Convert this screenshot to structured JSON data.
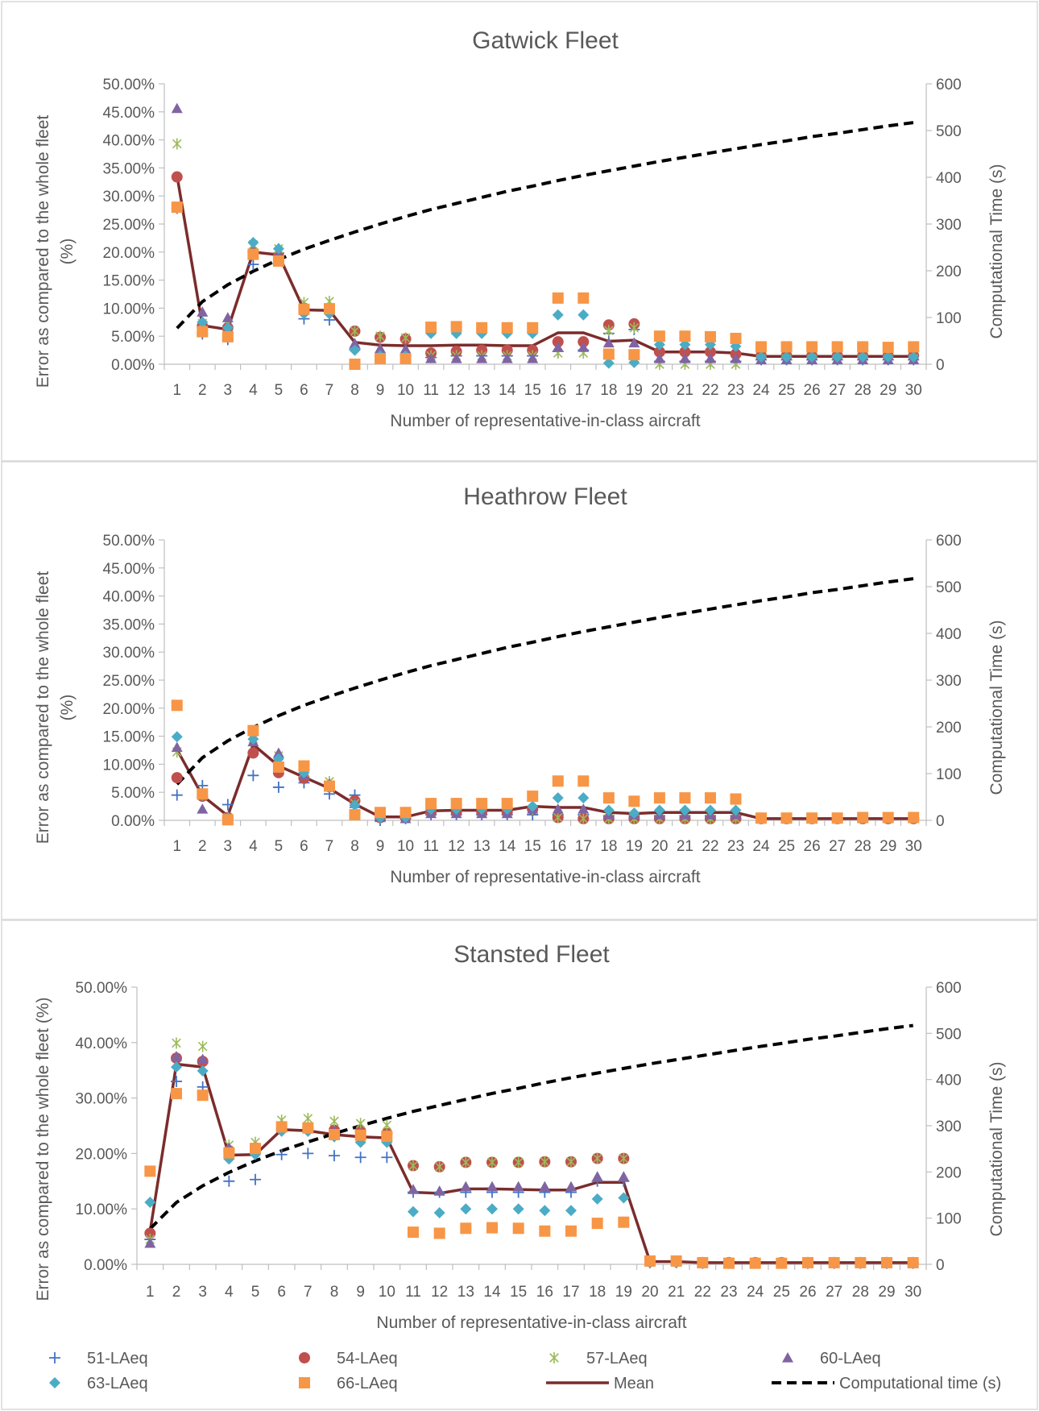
{
  "legend": {
    "items": [
      {
        "key": "s51",
        "label": "51-LAeq"
      },
      {
        "key": "s54",
        "label": "54-LAeq"
      },
      {
        "key": "s57",
        "label": "57-LAeq"
      },
      {
        "key": "s60",
        "label": "60-LAeq"
      },
      {
        "key": "s63",
        "label": "63-LAeq"
      },
      {
        "key": "s66",
        "label": "66-LAeq"
      },
      {
        "key": "mean",
        "label": "Mean"
      },
      {
        "key": "ct",
        "label": "Computational time (s)"
      }
    ]
  },
  "styles": {
    "s51": {
      "marker": "plus",
      "color": "#4472c4"
    },
    "s54": {
      "marker": "circle",
      "color": "#c0504d"
    },
    "s57": {
      "marker": "star",
      "color": "#9bbb59"
    },
    "s60": {
      "marker": "triangle",
      "color": "#8064a2"
    },
    "s63": {
      "marker": "diamond",
      "color": "#4bacc6"
    },
    "s66": {
      "marker": "square",
      "color": "#f79646"
    },
    "mean": {
      "line": "solid",
      "color": "#7b2c2c"
    },
    "ct": {
      "line": "dashed",
      "color": "#000000"
    }
  },
  "chart_data": [
    {
      "type": "scatter",
      "title": "Gatwick Fleet",
      "xlabel": "Number of representative-in-class aircraft",
      "ylabel_lines": [
        "Error as compared to the whole fleet",
        "(%)"
      ],
      "y2label": "Computational Time (s)",
      "x": [
        1,
        2,
        3,
        4,
        5,
        6,
        7,
        8,
        9,
        10,
        11,
        12,
        13,
        14,
        15,
        16,
        17,
        18,
        19,
        20,
        21,
        22,
        23,
        24,
        25,
        26,
        27,
        28,
        29,
        30
      ],
      "yticks": [
        "0.00%",
        "5.00%",
        "10.00%",
        "15.00%",
        "20.00%",
        "25.00%",
        "30.00%",
        "35.00%",
        "40.00%",
        "45.00%",
        "50.00%"
      ],
      "ylim": [
        0,
        50
      ],
      "y2ticks": [
        "0",
        "100",
        "200",
        "300",
        "400",
        "500",
        "600"
      ],
      "y2lim": [
        0,
        600
      ],
      "series": [
        {
          "key": "s51",
          "name": "51-LAeq",
          "values": [
            27.8,
            5.4,
            4.4,
            17.8,
            19.8,
            8.1,
            7.9,
            2.7,
            1.5,
            1.5,
            1.2,
            1.5,
            1.5,
            1.5,
            1.5,
            2.3,
            2.5,
            5.5,
            6.2,
            0.5,
            0.5,
            0.5,
            0.5,
            0.8,
            0.8,
            0.8,
            0.8,
            0.8,
            0.8,
            0.8
          ]
        },
        {
          "key": "s54",
          "name": "54-LAeq",
          "values": [
            33.4,
            6.8,
            6.5,
            20.0,
            19.2,
            10.0,
            9.6,
            5.9,
            4.8,
            4.5,
            2.0,
            2.3,
            2.5,
            2.5,
            2.5,
            4.0,
            4.0,
            7.0,
            7.2,
            2.2,
            2.2,
            2.2,
            1.8,
            1.5,
            1.5,
            1.5,
            1.5,
            1.5,
            1.5,
            1.5
          ]
        },
        {
          "key": "s57",
          "name": "57-LAeq",
          "values": [
            39.3,
            7.3,
            7.2,
            21.3,
            20.6,
            11.0,
            11.2,
            5.9,
            5.0,
            4.7,
            1.5,
            1.5,
            1.5,
            1.5,
            1.5,
            2.0,
            2.0,
            6.0,
            6.5,
            0.0,
            0.0,
            0.0,
            0.0,
            1.0,
            1.0,
            1.0,
            1.0,
            1.0,
            1.0,
            1.0
          ]
        },
        {
          "key": "s60",
          "name": "60-LAeq",
          "values": [
            45.6,
            9.3,
            8.3,
            20.0,
            19.3,
            10.0,
            9.8,
            3.7,
            2.8,
            2.7,
            1.0,
            1.0,
            1.0,
            1.0,
            1.0,
            3.0,
            3.0,
            3.8,
            3.8,
            1.0,
            1.0,
            1.0,
            1.0,
            0.8,
            0.8,
            0.8,
            0.8,
            0.8,
            0.8,
            0.8
          ]
        },
        {
          "key": "s63",
          "name": "63-LAeq",
          "values": [
            27.8,
            7.5,
            6.5,
            21.7,
            20.6,
            9.0,
            9.0,
            2.5,
            1.5,
            1.5,
            5.5,
            5.5,
            5.5,
            5.5,
            5.5,
            8.8,
            8.8,
            0.2,
            0.3,
            3.5,
            3.5,
            3.5,
            3.2,
            1.3,
            1.3,
            1.3,
            1.3,
            1.3,
            1.3,
            1.3
          ]
        },
        {
          "key": "s66",
          "name": "66-LAeq",
          "values": [
            28.0,
            5.8,
            4.9,
            19.6,
            18.4,
            9.8,
            9.9,
            0.0,
            1.0,
            1.0,
            6.6,
            6.7,
            6.5,
            6.5,
            6.5,
            11.8,
            11.8,
            1.8,
            1.7,
            5.0,
            5.0,
            4.9,
            4.6,
            3.1,
            3.1,
            3.1,
            3.1,
            3.1,
            3.0,
            3.1
          ]
        },
        {
          "key": "mean",
          "name": "Mean",
          "type": "line",
          "values": [
            33.6,
            6.9,
            6.2,
            20.0,
            19.5,
            9.7,
            9.6,
            3.9,
            3.4,
            3.3,
            3.3,
            3.4,
            3.4,
            3.3,
            3.3,
            5.6,
            5.6,
            4.1,
            4.3,
            2.2,
            2.2,
            2.2,
            2.0,
            1.4,
            1.4,
            1.4,
            1.4,
            1.4,
            1.4,
            1.4
          ]
        },
        {
          "key": "ct",
          "name": "Computational time (s)",
          "type": "line",
          "axis": "y2",
          "values": [
            77,
            134,
            170,
            199,
            224,
            246,
            265,
            283,
            300,
            316,
            331,
            344,
            357,
            370,
            381,
            393,
            404,
            414,
            424,
            434,
            443,
            452,
            461,
            470,
            478,
            487,
            494,
            502,
            510,
            517
          ]
        }
      ]
    },
    {
      "type": "scatter",
      "title": "Heathrow Fleet",
      "xlabel": "Number of representative-in-class aircraft",
      "ylabel_lines": [
        "Error as compared to the whole fleet",
        "(%)"
      ],
      "y2label": "Computational Time (s)",
      "x": [
        1,
        2,
        3,
        4,
        5,
        6,
        7,
        8,
        9,
        10,
        11,
        12,
        13,
        14,
        15,
        16,
        17,
        18,
        19,
        20,
        21,
        22,
        23,
        24,
        25,
        26,
        27,
        28,
        29,
        30
      ],
      "yticks": [
        "0.00%",
        "5.00%",
        "10.00%",
        "15.00%",
        "20.00%",
        "25.00%",
        "30.00%",
        "35.00%",
        "40.00%",
        "45.00%",
        "50.00%"
      ],
      "ylim": [
        0,
        50
      ],
      "y2ticks": [
        "0",
        "100",
        "200",
        "300",
        "400",
        "500",
        "600"
      ],
      "y2lim": [
        0,
        600
      ],
      "series": [
        {
          "key": "s51",
          "name": "51-LAeq",
          "values": [
            4.5,
            6.2,
            2.8,
            8.0,
            5.9,
            6.7,
            4.7,
            4.5,
            0.0,
            0.3,
            1.0,
            1.0,
            1.0,
            1.0,
            1.0,
            1.0,
            1.0,
            0.8,
            0.8,
            0.8,
            0.8,
            0.8,
            0.8,
            0.3,
            0.3,
            0.3,
            0.3,
            0.3,
            0.3,
            0.3
          ]
        },
        {
          "key": "s54",
          "name": "54-LAeq",
          "values": [
            7.6,
            4.3,
            0.5,
            12.0,
            8.5,
            7.5,
            6.0,
            3.5,
            0.5,
            0.5,
            1.5,
            1.5,
            1.5,
            1.5,
            2.0,
            0.5,
            0.3,
            0.3,
            0.3,
            0.3,
            0.3,
            0.3,
            0.3,
            0.3,
            0.3,
            0.3,
            0.3,
            0.3,
            0.3,
            0.3
          ]
        },
        {
          "key": "s57",
          "name": "57-LAeq",
          "values": [
            12.2,
            4.5,
            0.5,
            14.5,
            11.5,
            8.5,
            6.9,
            3.0,
            0.5,
            0.5,
            1.5,
            1.5,
            1.5,
            1.5,
            2.0,
            0.5,
            0.3,
            0.3,
            0.3,
            0.3,
            0.3,
            0.3,
            0.3,
            0.3,
            0.3,
            0.3,
            0.3,
            0.3,
            0.3,
            0.3
          ]
        },
        {
          "key": "s60",
          "name": "60-LAeq",
          "values": [
            13.0,
            2.0,
            0.5,
            14.0,
            12.0,
            8.0,
            6.5,
            3.0,
            0.5,
            0.3,
            1.2,
            1.2,
            1.2,
            1.2,
            2.0,
            2.0,
            2.0,
            1.0,
            1.0,
            1.0,
            1.0,
            1.0,
            1.0,
            0.3,
            0.3,
            0.3,
            0.3,
            0.3,
            0.3,
            0.3
          ]
        },
        {
          "key": "s63",
          "name": "63-LAeq",
          "values": [
            14.9,
            4.5,
            0.5,
            14.5,
            11.0,
            8.5,
            6.0,
            2.7,
            0.5,
            0.5,
            2.0,
            2.0,
            2.0,
            2.0,
            2.5,
            4.0,
            4.0,
            1.8,
            1.3,
            1.8,
            1.8,
            1.8,
            1.8,
            0.3,
            0.3,
            0.3,
            0.3,
            0.3,
            0.3,
            0.3
          ]
        },
        {
          "key": "s66",
          "name": "66-LAeq",
          "values": [
            20.5,
            4.7,
            0.1,
            16.0,
            9.5,
            9.7,
            6.1,
            1.0,
            1.4,
            1.4,
            3.0,
            3.0,
            3.0,
            3.0,
            4.3,
            7.0,
            7.0,
            4.0,
            3.4,
            4.0,
            4.0,
            4.0,
            3.8,
            0.4,
            0.4,
            0.4,
            0.4,
            0.5,
            0.5,
            0.5
          ]
        },
        {
          "key": "mean",
          "name": "Mean",
          "type": "line",
          "values": [
            12.6,
            4.4,
            0.8,
            13.5,
            9.7,
            7.7,
            5.7,
            2.9,
            0.6,
            0.6,
            1.7,
            1.8,
            1.8,
            1.8,
            2.5,
            2.3,
            2.3,
            1.4,
            1.2,
            1.4,
            1.4,
            1.4,
            1.4,
            0.3,
            0.3,
            0.3,
            0.3,
            0.3,
            0.3,
            0.3
          ]
        },
        {
          "key": "ct",
          "name": "Computational time (s)",
          "type": "line",
          "axis": "y2",
          "values": [
            77,
            134,
            170,
            199,
            224,
            246,
            265,
            283,
            300,
            316,
            331,
            344,
            357,
            370,
            381,
            393,
            404,
            414,
            424,
            434,
            443,
            452,
            461,
            470,
            478,
            487,
            494,
            502,
            510,
            517
          ]
        }
      ]
    },
    {
      "type": "scatter",
      "title": "Stansted Fleet",
      "xlabel": "Number of representative-in-class aircraft",
      "ylabel_lines": [
        "Error as compared to the whole fleet (%)"
      ],
      "y2label": "Computational Time (s)",
      "x": [
        1,
        2,
        3,
        4,
        5,
        6,
        7,
        8,
        9,
        10,
        11,
        12,
        13,
        14,
        15,
        16,
        17,
        18,
        19,
        20,
        21,
        22,
        23,
        24,
        25,
        26,
        27,
        28,
        29,
        30
      ],
      "yticks": [
        "0.00%",
        "10.00%",
        "20.00%",
        "30.00%",
        "40.00%",
        "50.00%"
      ],
      "ylim": [
        0,
        50
      ],
      "y2ticks": [
        "0",
        "100",
        "200",
        "300",
        "400",
        "500",
        "600"
      ],
      "y2lim": [
        0,
        600
      ],
      "series": [
        {
          "key": "s51",
          "name": "51-LAeq",
          "values": [
            4.5,
            33.0,
            32.0,
            15.0,
            15.3,
            19.8,
            20.0,
            19.6,
            19.3,
            19.3,
            13.0,
            13.0,
            13.0,
            13.0,
            13.0,
            13.0,
            13.0,
            15.0,
            15.0,
            0.3,
            0.3,
            0.2,
            0.2,
            0.2,
            0.2,
            0.2,
            0.2,
            0.2,
            0.2,
            0.2
          ]
        },
        {
          "key": "s54",
          "name": "54-LAeq",
          "values": [
            5.6,
            37.2,
            36.6,
            20.5,
            21.0,
            24.5,
            24.6,
            24.2,
            24.0,
            23.6,
            17.8,
            17.6,
            18.4,
            18.4,
            18.4,
            18.5,
            18.5,
            19.1,
            19.1,
            0.5,
            0.5,
            0.3,
            0.3,
            0.3,
            0.3,
            0.3,
            0.3,
            0.3,
            0.3,
            0.3
          ]
        },
        {
          "key": "s57",
          "name": "57-LAeq",
          "values": [
            4.5,
            39.9,
            39.3,
            21.5,
            22.0,
            26.0,
            26.3,
            25.8,
            25.4,
            25.1,
            17.8,
            17.6,
            18.4,
            18.4,
            18.4,
            18.5,
            18.5,
            19.1,
            19.1,
            0.5,
            0.5,
            0.3,
            0.3,
            0.3,
            0.3,
            0.3,
            0.3,
            0.3,
            0.3,
            0.3
          ]
        },
        {
          "key": "s60",
          "name": "60-LAeq",
          "values": [
            3.8,
            37.5,
            37.0,
            21.0,
            21.0,
            24.8,
            24.6,
            24.0,
            23.6,
            23.2,
            13.5,
            13.2,
            14.0,
            14.0,
            14.0,
            14.0,
            14.0,
            15.8,
            15.8,
            0.5,
            0.5,
            0.3,
            0.3,
            0.3,
            0.3,
            0.3,
            0.3,
            0.3,
            0.3,
            0.3
          ]
        },
        {
          "key": "s63",
          "name": "63-LAeq",
          "values": [
            11.2,
            35.6,
            34.9,
            19.0,
            19.8,
            24.0,
            24.0,
            23.0,
            22.0,
            22.0,
            9.5,
            9.3,
            10.0,
            10.0,
            10.0,
            9.7,
            9.7,
            11.8,
            12.0,
            0.3,
            0.3,
            0.3,
            0.3,
            0.3,
            0.3,
            0.3,
            0.3,
            0.3,
            0.3,
            0.3
          ]
        },
        {
          "key": "s66",
          "name": "66-LAeq",
          "values": [
            16.8,
            30.8,
            30.5,
            20.1,
            20.9,
            24.8,
            24.6,
            23.4,
            23.3,
            23.1,
            5.8,
            5.6,
            6.5,
            6.6,
            6.5,
            6.0,
            6.0,
            7.4,
            7.6,
            0.6,
            0.6,
            0.3,
            0.2,
            0.2,
            0.2,
            0.3,
            0.3,
            0.3,
            0.3,
            0.3
          ]
        },
        {
          "key": "mean",
          "name": "Mean",
          "type": "line",
          "values": [
            5.9,
            36.1,
            35.6,
            19.7,
            19.8,
            24.3,
            24.1,
            23.4,
            23.0,
            22.8,
            13.0,
            12.8,
            13.6,
            13.6,
            13.5,
            13.4,
            13.4,
            14.8,
            14.8,
            0.5,
            0.5,
            0.3,
            0.3,
            0.3,
            0.3,
            0.3,
            0.3,
            0.3,
            0.3,
            0.3
          ]
        },
        {
          "key": "ct",
          "name": "Computational time (s)",
          "type": "line",
          "axis": "y2",
          "values": [
            77,
            134,
            170,
            199,
            224,
            246,
            265,
            283,
            300,
            316,
            331,
            344,
            357,
            370,
            381,
            393,
            404,
            414,
            424,
            434,
            443,
            452,
            461,
            470,
            478,
            487,
            494,
            502,
            510,
            517
          ]
        }
      ]
    }
  ]
}
